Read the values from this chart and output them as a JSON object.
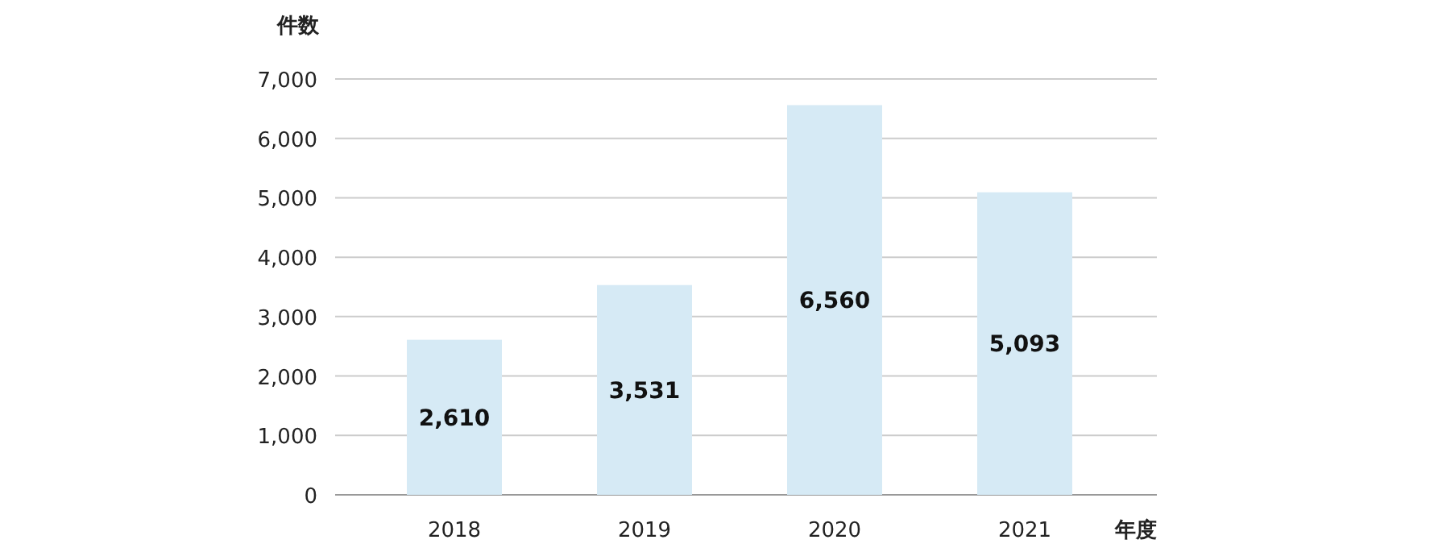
{
  "chart_data": {
    "type": "bar",
    "ylabel": "件数",
    "xlabel": "年度",
    "categories": [
      "2018",
      "2019",
      "2020",
      "2021"
    ],
    "values": [
      2610,
      3531,
      6560,
      5093
    ],
    "value_labels": [
      "2,610",
      "3,531",
      "6,560",
      "5,093"
    ],
    "color": "#d6eaf5",
    "ylim": [
      0,
      7000
    ],
    "yticks": [
      {
        "value": 0,
        "label": "0"
      },
      {
        "value": 1000,
        "label": "1,000"
      },
      {
        "value": 2000,
        "label": "2,000"
      },
      {
        "value": 3000,
        "label": "3,000"
      },
      {
        "value": 4000,
        "label": "4,000"
      },
      {
        "value": 5000,
        "label": "5,000"
      },
      {
        "value": 6000,
        "label": "6,000"
      },
      {
        "value": 7000,
        "label": "7,000"
      }
    ],
    "grid": "y"
  }
}
